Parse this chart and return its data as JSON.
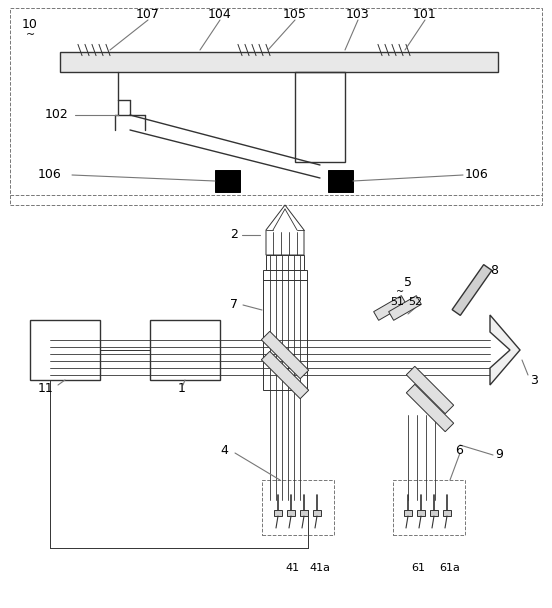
{
  "fig_width": 5.52,
  "fig_height": 6.08,
  "dpi": 100,
  "bg_color": "#ffffff",
  "lc": "#777777",
  "dc": "#333333",
  "bc": "#000000",
  "lw_thin": 0.7,
  "lw_med": 1.0,
  "lw_thick": 1.5
}
